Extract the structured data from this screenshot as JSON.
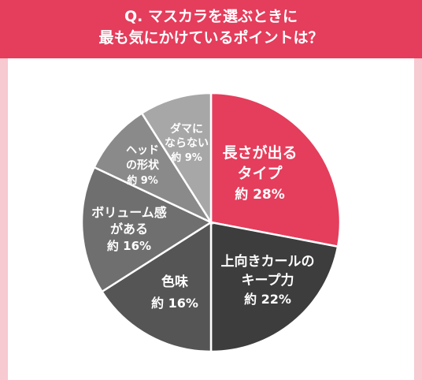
{
  "title": {
    "line1": "Q. マスカラを選ぶときに",
    "line2": "最も気にかけているポイントは？"
  },
  "colors": {
    "accent": "#e53d5c",
    "frame": "#f7c9d1"
  },
  "chart_data": {
    "type": "pie",
    "title": "Q. マスカラを選ぶときに最も気にかけているポイントは？",
    "slices": [
      {
        "label_lines": [
          "長さが出る",
          "タイプ"
        ],
        "value_label": "約 28%",
        "value": 28,
        "color": "#e53d5c",
        "text_color": "#ffffff"
      },
      {
        "label_lines": [
          "上向きカールの",
          "キープ力"
        ],
        "value_label": "約 22%",
        "value": 22,
        "color": "#3d3d3d",
        "text_color": "#ffffff"
      },
      {
        "label_lines": [
          "色味"
        ],
        "value_label": "約 16%",
        "value": 16,
        "color": "#555555",
        "text_color": "#ffffff"
      },
      {
        "label_lines": [
          "ボリューム感",
          "がある"
        ],
        "value_label": "約 16%",
        "value": 16,
        "color": "#6f6f6f",
        "text_color": "#ffffff"
      },
      {
        "label_lines": [
          "ヘッド",
          "の形状"
        ],
        "value_label": "約 9%",
        "value": 9,
        "color": "#8a8a8a",
        "text_color": "#ffffff"
      },
      {
        "label_lines": [
          "ダマに",
          "ならない"
        ],
        "value_label": "約 9%",
        "value": 9,
        "color": "#a7a7a7",
        "text_color": "#ffffff"
      }
    ]
  }
}
